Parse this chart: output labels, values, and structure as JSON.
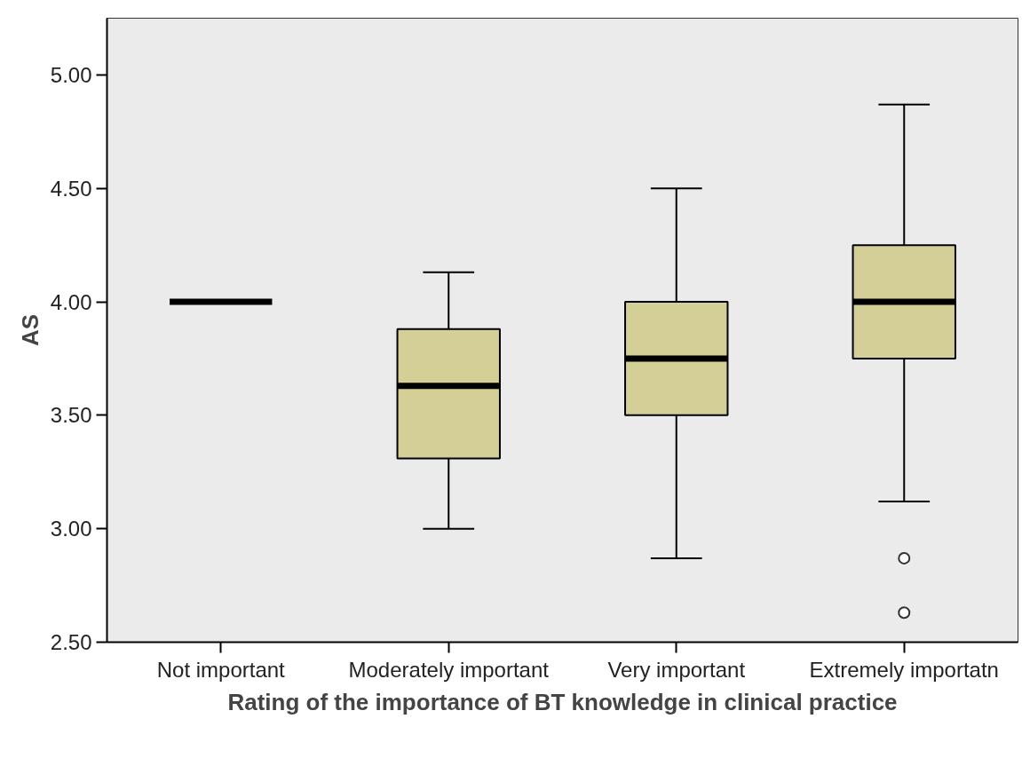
{
  "chart_data": {
    "type": "box",
    "xlabel": "Rating of the importance of BT knowledge in clinical practice",
    "ylabel": "AS",
    "categories": [
      "Not important",
      "Moderately important",
      "Very important",
      "Extremely importatn"
    ],
    "boxes": [
      {
        "low": 4.0,
        "q1": 4.0,
        "median": 4.0,
        "q3": 4.0,
        "high": 4.0
      },
      {
        "low": 3.0,
        "q1": 3.31,
        "median": 3.63,
        "q3": 3.88,
        "high": 4.13
      },
      {
        "low": 2.87,
        "q1": 3.5,
        "median": 3.75,
        "q3": 4.0,
        "high": 4.5
      },
      {
        "low": 3.12,
        "q1": 3.75,
        "median": 4.0,
        "q3": 4.25,
        "high": 4.87,
        "outliers": [
          2.87,
          2.63
        ]
      }
    ],
    "colors": [
      null,
      "#d4cf96",
      "#d4cf96",
      "#d4cf96"
    ],
    "ylim": [
      2.5,
      5.25
    ],
    "yticks": [
      {
        "value": 2.5,
        "label": "2.50"
      },
      {
        "value": 3.0,
        "label": "3.00"
      },
      {
        "value": 3.5,
        "label": "3.50"
      },
      {
        "value": 4.0,
        "label": "4.00"
      },
      {
        "value": 4.5,
        "label": "4.50"
      },
      {
        "value": 5.0,
        "label": "5.00"
      }
    ],
    "grid": false
  }
}
